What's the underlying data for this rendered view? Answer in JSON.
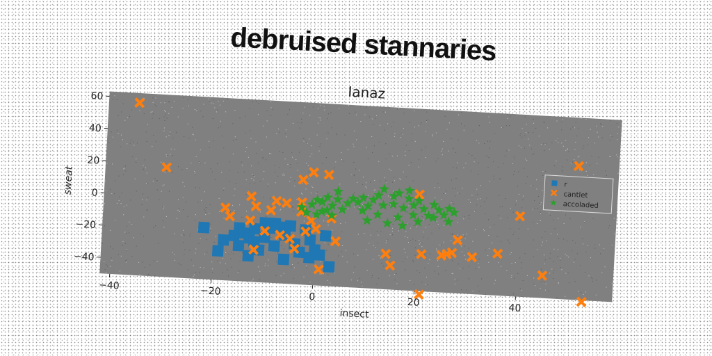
{
  "figure": {
    "suptitle": "debruised stannaries"
  },
  "chart_data": {
    "type": "scatter",
    "title": "Ianaz",
    "xlabel": "insect",
    "ylabel": "sweat",
    "xlim": [
      -42,
      59
    ],
    "ylim": [
      -50,
      63
    ],
    "xticks": [
      -40,
      -20,
      0,
      20,
      40
    ],
    "yticks": [
      -40,
      -20,
      0,
      20,
      40,
      60
    ],
    "grid": false,
    "legend_position": "right",
    "colors": {
      "plot_background": "#808080",
      "axes_text": "#222222"
    },
    "series": [
      {
        "name": "r",
        "color": "#1f77b4",
        "marker": "square",
        "points": [
          [
            -22,
            -18
          ],
          [
            -19,
            -32
          ],
          [
            -18,
            -25
          ],
          [
            -16,
            -22
          ],
          [
            -15,
            -17
          ],
          [
            -15,
            -28
          ],
          [
            -14,
            -20
          ],
          [
            -13,
            -23
          ],
          [
            -13,
            -34
          ],
          [
            -12,
            -17
          ],
          [
            -12,
            -25
          ],
          [
            -11,
            -30
          ],
          [
            -10,
            -13
          ],
          [
            -10,
            -22
          ],
          [
            -9,
            -16
          ],
          [
            -8,
            -13
          ],
          [
            -8,
            -27
          ],
          [
            -7,
            -15
          ],
          [
            -6,
            -20
          ],
          [
            -6,
            -35
          ],
          [
            -5,
            -14
          ],
          [
            -4,
            -25
          ],
          [
            -3,
            -30
          ],
          [
            -2,
            -16
          ],
          [
            -1,
            -22
          ],
          [
            -1,
            -33
          ],
          [
            0,
            -28
          ],
          [
            1,
            -31
          ],
          [
            2,
            -19
          ],
          [
            3,
            -38
          ]
        ]
      },
      {
        "name": "cantlet",
        "color": "#ff7f0e",
        "marker": "x",
        "points": [
          [
            -36,
            57
          ],
          [
            -30,
            18
          ],
          [
            -18,
            -5
          ],
          [
            -17,
            -10
          ],
          [
            -13,
            3
          ],
          [
            -13,
            -12
          ],
          [
            -12,
            -3
          ],
          [
            -12,
            -30
          ],
          [
            -10,
            -18
          ],
          [
            -9,
            -5
          ],
          [
            -8,
            1
          ],
          [
            -7,
            -20
          ],
          [
            -6,
            0
          ],
          [
            -5,
            -22
          ],
          [
            -4,
            -28
          ],
          [
            -3,
            1
          ],
          [
            -3,
            -5
          ],
          [
            -3,
            15
          ],
          [
            -2,
            -17
          ],
          [
            -1,
            -10
          ],
          [
            -1,
            20
          ],
          [
            0,
            -15
          ],
          [
            1,
            -40
          ],
          [
            2,
            19
          ],
          [
            3,
            -8
          ],
          [
            4,
            -22
          ],
          [
            14,
            -28
          ],
          [
            15,
            -35
          ],
          [
            20,
            10
          ],
          [
            21,
            -27
          ],
          [
            21,
            -52
          ],
          [
            25,
            -27
          ],
          [
            26,
            -26
          ],
          [
            27,
            -25
          ],
          [
            28,
            -17
          ],
          [
            31,
            -27
          ],
          [
            36,
            -24
          ],
          [
            40,
            0
          ],
          [
            45,
            -36
          ],
          [
            51,
            33
          ],
          [
            53,
            -51
          ]
        ]
      },
      {
        "name": "accoladed",
        "color": "#2ca02c",
        "marker": "star",
        "points": [
          [
            -3,
            -2
          ],
          [
            -2,
            -5
          ],
          [
            -1,
            0
          ],
          [
            0,
            3
          ],
          [
            0,
            -6
          ],
          [
            1,
            2
          ],
          [
            1,
            -4
          ],
          [
            2,
            5
          ],
          [
            2,
            -3
          ],
          [
            3,
            0
          ],
          [
            3,
            -6
          ],
          [
            4,
            4
          ],
          [
            4,
            9
          ],
          [
            5,
            -2
          ],
          [
            6,
            2
          ],
          [
            7,
            5
          ],
          [
            8,
            3
          ],
          [
            9,
            -2
          ],
          [
            9,
            6
          ],
          [
            10,
            1
          ],
          [
            10,
            -8
          ],
          [
            11,
            5
          ],
          [
            12,
            -4
          ],
          [
            12,
            8
          ],
          [
            13,
            2
          ],
          [
            13,
            12
          ],
          [
            14,
            -9
          ],
          [
            15,
            3
          ],
          [
            15,
            8
          ],
          [
            16,
            10
          ],
          [
            16,
            -5
          ],
          [
            17,
            1
          ],
          [
            17,
            -10
          ],
          [
            18,
            7
          ],
          [
            18,
            12
          ],
          [
            19,
            -3
          ],
          [
            19,
            3
          ],
          [
            20,
            -7
          ],
          [
            20,
            6
          ],
          [
            21,
            1
          ],
          [
            22,
            -3
          ],
          [
            23,
            4
          ],
          [
            23,
            -4
          ],
          [
            24,
            1
          ],
          [
            25,
            -2
          ],
          [
            26,
            2
          ],
          [
            26,
            -6
          ],
          [
            27,
            0
          ]
        ]
      }
    ]
  }
}
